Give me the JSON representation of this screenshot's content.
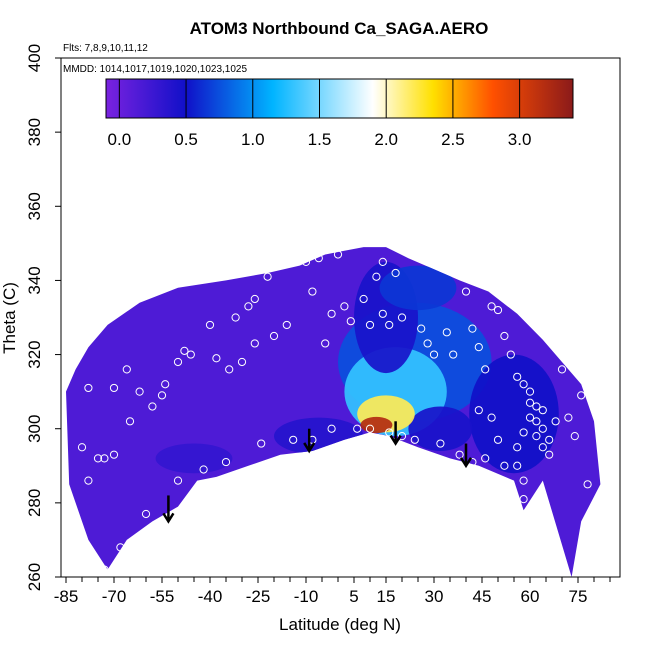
{
  "chart_data": {
    "type": "heatmap",
    "title": "ATOM3 Northbound Ca_SAGA.AERO",
    "flights_label": "Flts: 7,8,9,10,11,12",
    "dates_label": "MMDD: 1014,1017,1019,1020,1023,1025",
    "xlabel": "Latitude (deg N)",
    "ylabel": "Theta (C)",
    "xlim": [
      -85,
      85
    ],
    "ylim": [
      260,
      400
    ],
    "x_ticks": [
      -85,
      -70,
      -55,
      -40,
      -25,
      -10,
      5,
      15,
      30,
      45,
      60,
      75
    ],
    "x_minor_ticks": [
      -80,
      -75,
      -65,
      -60,
      -50,
      -45,
      -35,
      -30,
      -20,
      -15,
      -5,
      0,
      10,
      20,
      25,
      35,
      40,
      50,
      55,
      65,
      70,
      80,
      85
    ],
    "y_ticks": [
      260,
      280,
      300,
      320,
      340,
      360,
      380,
      400
    ],
    "colorbar": {
      "range": [
        -0.1,
        3.4
      ],
      "ticks": [
        "0.0",
        "0.5",
        "1.0",
        "1.5",
        "2.0",
        "2.5",
        "3.0"
      ],
      "tick_values": [
        0.0,
        0.5,
        1.0,
        1.5,
        2.0,
        2.5,
        3.0
      ],
      "colors": [
        "#7a22e0",
        "#1010c8",
        "#00b4ff",
        "#ffffff",
        "#ffe000",
        "#ff5000",
        "#8b1a1a"
      ],
      "color_stops": [
        -0.1,
        0.5,
        1.15,
        1.9,
        2.35,
        2.8,
        3.4
      ]
    },
    "background_value": 0.15,
    "hull": [
      [
        -85,
        310
      ],
      [
        -82,
        316
      ],
      [
        -78,
        322
      ],
      [
        -72,
        328
      ],
      [
        -62,
        334
      ],
      [
        -50,
        338
      ],
      [
        -35,
        340
      ],
      [
        -22,
        342
      ],
      [
        -12,
        344
      ],
      [
        -4,
        347
      ],
      [
        2,
        348
      ],
      [
        8,
        349
      ],
      [
        15,
        349
      ],
      [
        22,
        346
      ],
      [
        30,
        343
      ],
      [
        38,
        340
      ],
      [
        47,
        337
      ],
      [
        56,
        331
      ],
      [
        64,
        324
      ],
      [
        70,
        318
      ],
      [
        76,
        312
      ],
      [
        80,
        302
      ],
      [
        82,
        285
      ],
      [
        76,
        275
      ],
      [
        73,
        260
      ],
      [
        64,
        286
      ],
      [
        58,
        278
      ],
      [
        55,
        286
      ],
      [
        44,
        290
      ],
      [
        35,
        292
      ],
      [
        25,
        295
      ],
      [
        16,
        298
      ],
      [
        10,
        299
      ],
      [
        2,
        297
      ],
      [
        -8,
        294
      ],
      [
        -18,
        293
      ],
      [
        -28,
        290
      ],
      [
        -38,
        287
      ],
      [
        -44,
        286
      ],
      [
        -50,
        279
      ],
      [
        -58,
        275
      ],
      [
        -66,
        270
      ],
      [
        -72,
        262
      ],
      [
        -78,
        270
      ],
      [
        -84,
        285
      ]
    ],
    "hotspots": [
      {
        "x": 12,
        "y": 301,
        "value": 3.2,
        "rx": 5,
        "ry": 2.2
      },
      {
        "x": 15,
        "y": 304,
        "value": 2.2,
        "rx": 9,
        "ry": 5
      },
      {
        "x": 18,
        "y": 310,
        "value": 1.3,
        "rx": 16,
        "ry": 12
      },
      {
        "x": 24,
        "y": 318,
        "value": 0.75,
        "rx": 24,
        "ry": 16
      },
      {
        "x": 15,
        "y": 330,
        "value": 0.45,
        "rx": 10,
        "ry": 15
      },
      {
        "x": 25,
        "y": 338,
        "value": 0.65,
        "rx": 12,
        "ry": 6
      },
      {
        "x": 55,
        "y": 304,
        "value": 0.5,
        "rx": 14,
        "ry": 16
      },
      {
        "x": 32,
        "y": 300,
        "value": 0.45,
        "rx": 10,
        "ry": 6
      },
      {
        "x": -6,
        "y": 298,
        "value": 0.38,
        "rx": 14,
        "ry": 5
      },
      {
        "x": -45,
        "y": 292,
        "value": 0.3,
        "rx": 12,
        "ry": 4
      }
    ],
    "arrows": [
      {
        "x": -53,
        "y_top": 282,
        "y_bottom": 275
      },
      {
        "x": -9,
        "y_top": 300,
        "y_bottom": 294
      },
      {
        "x": 18,
        "y_top": 302,
        "y_bottom": 296
      },
      {
        "x": 40,
        "y_top": 296,
        "y_bottom": 290
      }
    ],
    "points": [
      [
        -78,
        311
      ],
      [
        -80,
        295
      ],
      [
        -75,
        292
      ],
      [
        -73,
        292
      ],
      [
        -70,
        293
      ],
      [
        -78,
        286
      ],
      [
        -65,
        302
      ],
      [
        -62,
        310
      ],
      [
        -55,
        309
      ],
      [
        -50,
        318
      ],
      [
        -48,
        321
      ],
      [
        -46,
        320
      ],
      [
        -40,
        328
      ],
      [
        -38,
        319
      ],
      [
        -34,
        316
      ],
      [
        -32,
        330
      ],
      [
        -28,
        333
      ],
      [
        -26,
        335
      ],
      [
        -22,
        341
      ],
      [
        -20,
        325
      ],
      [
        -16,
        328
      ],
      [
        -14,
        345
      ],
      [
        -10,
        345
      ],
      [
        -8,
        337
      ],
      [
        -6,
        346
      ],
      [
        -4,
        323
      ],
      [
        -2,
        331
      ],
      [
        0,
        347
      ],
      [
        2,
        333
      ],
      [
        4,
        329
      ],
      [
        8,
        335
      ],
      [
        10,
        328
      ],
      [
        12,
        341
      ],
      [
        14,
        345
      ],
      [
        14,
        331
      ],
      [
        16,
        328
      ],
      [
        18,
        342
      ],
      [
        20,
        330
      ],
      [
        26,
        327
      ],
      [
        28,
        323
      ],
      [
        30,
        320
      ],
      [
        34,
        326
      ],
      [
        36,
        320
      ],
      [
        40,
        337
      ],
      [
        42,
        327
      ],
      [
        44,
        322
      ],
      [
        46,
        316
      ],
      [
        48,
        333
      ],
      [
        50,
        332
      ],
      [
        52,
        325
      ],
      [
        54,
        320
      ],
      [
        56,
        314
      ],
      [
        58,
        312
      ],
      [
        60,
        310
      ],
      [
        62,
        306
      ],
      [
        62,
        302
      ],
      [
        64,
        300
      ],
      [
        66,
        297
      ],
      [
        68,
        302
      ],
      [
        70,
        316
      ],
      [
        72,
        303
      ],
      [
        74,
        298
      ],
      [
        76,
        309
      ],
      [
        78,
        285
      ],
      [
        64,
        295
      ],
      [
        58,
        286
      ],
      [
        56,
        295
      ],
      [
        50,
        297
      ],
      [
        46,
        292
      ],
      [
        42,
        291
      ],
      [
        38,
        293
      ],
      [
        32,
        296
      ],
      [
        24,
        297
      ],
      [
        20,
        298
      ],
      [
        16,
        299
      ],
      [
        10,
        300
      ],
      [
        6,
        300
      ],
      [
        -2,
        300
      ],
      [
        -8,
        297
      ],
      [
        -14,
        297
      ],
      [
        -24,
        296
      ],
      [
        -35,
        291
      ],
      [
        -42,
        289
      ],
      [
        -50,
        286
      ],
      [
        -60,
        277
      ],
      [
        -68,
        268
      ],
      [
        -73,
        262
      ],
      [
        -26,
        323
      ],
      [
        -30,
        318
      ],
      [
        -54,
        312
      ],
      [
        -58,
        306
      ],
      [
        -66,
        316
      ],
      [
        -70,
        311
      ],
      [
        58,
        299
      ],
      [
        60,
        303
      ],
      [
        62,
        298
      ],
      [
        64,
        305
      ],
      [
        66,
        293
      ],
      [
        56,
        290
      ],
      [
        54,
        285
      ],
      [
        52,
        290
      ],
      [
        44,
        305
      ],
      [
        48,
        303
      ],
      [
        60,
        307
      ],
      [
        62,
        280
      ],
      [
        58,
        281
      ]
    ]
  }
}
